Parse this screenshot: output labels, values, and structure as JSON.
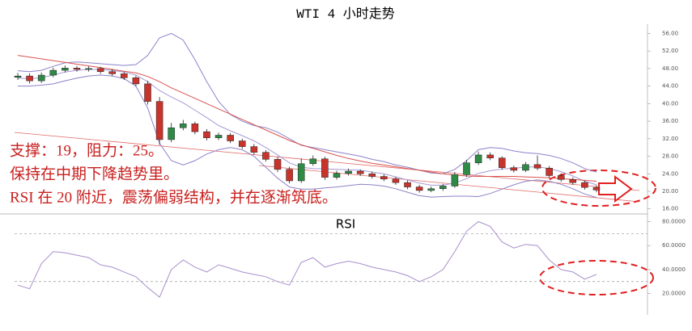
{
  "chart_data": [
    {
      "type": "candlestick",
      "title": "WTI 4 小时走势",
      "annotations": [
        "支撑：19，阻力：25。",
        "保持在中期下降趋势里。",
        "RSI 在 20 附近，震荡偏弱结构，并在逐渐筑底。"
      ],
      "categories": [
        null,
        null,
        null,
        null,
        null,
        null,
        null,
        null,
        null,
        null,
        null,
        null,
        null,
        null,
        null,
        null,
        null,
        null,
        null,
        null,
        null,
        null,
        null,
        null,
        null,
        null,
        null,
        null,
        null,
        null,
        null,
        null,
        null,
        null,
        null,
        null,
        null,
        null,
        null,
        null,
        null,
        null,
        null,
        null,
        null,
        null,
        null,
        null,
        null,
        null
      ],
      "open": [
        46.0,
        46.3,
        45.2,
        46.5,
        47.6,
        48.1,
        47.8,
        48.0,
        47.3,
        46.8,
        45.9,
        44.5,
        40.5,
        31.8,
        34.5,
        35.4,
        33.6,
        32.2,
        32.8,
        31.5,
        30.2,
        28.9,
        27.3,
        25.0,
        22.4,
        26.3,
        27.4,
        23.2,
        24.1,
        24.6,
        24.0,
        23.4,
        22.8,
        22.0,
        21.0,
        20.2,
        20.6,
        21.2,
        23.8,
        26.5,
        28.3,
        27.6,
        25.4,
        24.8,
        26.1,
        25.3,
        23.6,
        22.7,
        22.0,
        20.9
      ],
      "high": [
        47.0,
        46.9,
        47.1,
        48.2,
        48.7,
        48.6,
        48.5,
        48.4,
        47.9,
        47.2,
        46.4,
        45.2,
        41.5,
        35.6,
        36.3,
        35.9,
        34.2,
        33.4,
        33.3,
        32.0,
        30.8,
        29.4,
        27.9,
        25.6,
        27.5,
        28.2,
        27.9,
        24.7,
        25.2,
        25.0,
        24.5,
        23.9,
        23.3,
        22.5,
        21.5,
        21.1,
        21.7,
        24.4,
        27.2,
        29.1,
        28.9,
        28.0,
        25.9,
        26.7,
        28.2,
        25.8,
        24.1,
        23.2,
        22.4,
        21.4
      ],
      "low": [
        45.4,
        44.6,
        44.7,
        46.0,
        47.1,
        47.3,
        47.3,
        46.8,
        46.3,
        45.4,
        43.9,
        39.8,
        30.6,
        31.2,
        33.9,
        33.0,
        31.6,
        31.7,
        31.0,
        29.7,
        28.4,
        26.8,
        24.4,
        21.8,
        21.9,
        25.8,
        22.6,
        22.7,
        23.6,
        23.5,
        22.9,
        22.3,
        21.5,
        20.5,
        19.7,
        19.8,
        20.1,
        20.8,
        23.3,
        26.0,
        27.1,
        24.9,
        24.3,
        24.4,
        24.8,
        23.1,
        22.2,
        21.5,
        20.4,
        19.8
      ],
      "close": [
        46.3,
        45.2,
        46.5,
        47.6,
        48.1,
        47.8,
        48.0,
        47.3,
        46.8,
        45.9,
        44.5,
        40.5,
        31.8,
        34.5,
        35.4,
        33.6,
        32.2,
        32.8,
        31.5,
        30.2,
        28.9,
        27.3,
        25.0,
        22.4,
        26.3,
        27.4,
        23.2,
        24.1,
        24.6,
        24.0,
        23.4,
        22.8,
        22.0,
        21.0,
        20.2,
        20.6,
        21.2,
        23.8,
        26.5,
        28.3,
        27.6,
        25.4,
        24.8,
        26.1,
        25.3,
        23.6,
        22.7,
        22.0,
        20.9,
        20.3
      ],
      "up_color": "#2e8b46",
      "down_color": "#c8332c",
      "series": [
        {
          "color": "#8c82c8",
          "values": [
            47.5,
            47.3,
            47.6,
            48.5,
            49.3,
            49.5,
            49.3,
            49.1,
            48.9,
            48.7,
            48.9,
            51,
            55,
            56,
            54.5,
            50,
            45,
            40.5,
            37.5,
            36,
            35,
            34.5,
            33.5,
            32,
            30.5,
            30,
            29.5,
            29,
            28.5,
            28,
            27.3,
            26.8,
            26,
            25.5,
            24.8,
            24.2,
            24,
            25,
            27,
            29.5,
            30,
            29.8,
            29.2,
            28.8,
            28.6,
            28.2,
            27.5,
            26.5,
            25.2,
            24.4
          ]
        },
        {
          "color": "#a79ad6",
          "values": [
            45.8,
            45.7,
            45.9,
            46.5,
            47.2,
            47.6,
            47.8,
            47.8,
            47.6,
            47.2,
            46.5,
            45,
            43,
            41.5,
            40.2,
            38.5,
            36.8,
            35,
            33.8,
            32.7,
            31.5,
            30,
            28.3,
            26.5,
            25.5,
            25.2,
            25.1,
            25,
            24.9,
            24.8,
            24.4,
            24,
            23.3,
            22.6,
            21.9,
            21.4,
            21.4,
            21.9,
            22.9,
            24.1,
            24.7,
            25.1,
            25.3,
            25.5,
            25.6,
            25.2,
            24.5,
            23.5,
            22.3,
            21.5
          ]
        },
        {
          "color": "#8c82c8",
          "values": [
            44,
            44,
            44.2,
            44.5,
            45.2,
            45.8,
            46.3,
            46.5,
            46.3,
            45.7,
            44,
            39,
            31,
            27,
            26,
            27,
            28.5,
            29.5,
            30,
            29.5,
            28,
            25.5,
            23,
            21,
            20.5,
            20.5,
            20.8,
            21,
            21.3,
            21.6,
            21.5,
            21.2,
            20.6,
            19.8,
            19,
            18.7,
            18.8,
            18.9,
            18.9,
            18.8,
            19.5,
            20.5,
            21.5,
            22.3,
            22.6,
            22.3,
            21.6,
            20.6,
            19.4,
            18.6
          ]
        },
        {
          "color": "#d9534f",
          "values": [
            51,
            50.6,
            50.2,
            49.8,
            49.4,
            49,
            48.6,
            48.2,
            47.8,
            47.4,
            47,
            46.2,
            45,
            43.6,
            42.4,
            41.2,
            40,
            38.8,
            37.6,
            36.4,
            35.2,
            34,
            32.8,
            31.6,
            30.6,
            29.8,
            29,
            28.2,
            27.5,
            26.9,
            26.4,
            26,
            25.6,
            25.2,
            24.8,
            24.4,
            24,
            23.7,
            23.5,
            23.4,
            23.4,
            23.4,
            23.4,
            23.3,
            23.2,
            23.1,
            22.9,
            22.7,
            22.5,
            22.3
          ]
        }
      ],
      "ylim": [
        15.4,
        57
      ],
      "yticks": [
        {
          "value": 16,
          "label": "16.00"
        },
        {
          "value": 20,
          "label": "20.00"
        },
        {
          "value": 24,
          "label": "24.00"
        },
        {
          "value": 28,
          "label": "28.00"
        },
        {
          "value": 32,
          "label": "32.00"
        },
        {
          "value": 36,
          "label": "36.00"
        },
        {
          "value": 40,
          "label": "40.00"
        },
        {
          "value": 44,
          "label": "44.00"
        },
        {
          "value": 48,
          "label": "48.00"
        },
        {
          "value": 52,
          "label": "52.00"
        },
        {
          "value": 56,
          "label": "56.00"
        }
      ]
    },
    {
      "type": "line",
      "title": "RSI",
      "series": [
        {
          "color": "#a88fcb",
          "values": [
            27,
            24,
            45,
            55,
            54,
            52,
            50,
            44,
            42,
            38,
            34,
            25,
            17,
            40,
            48,
            42,
            38,
            44,
            41,
            38,
            36,
            34,
            30,
            27,
            46,
            50,
            42,
            45,
            47,
            45,
            42,
            40,
            38,
            35,
            30,
            34,
            40,
            55,
            72,
            80,
            76,
            63,
            58,
            61,
            60,
            48,
            40,
            38,
            32,
            36
          ]
        }
      ],
      "reference_lines": [
        70,
        30
      ],
      "ylim": [
        9,
        83
      ],
      "yticks": [
        {
          "value": 20,
          "label": "20.0000"
        },
        {
          "value": 40,
          "label": "40.0000"
        },
        {
          "value": 60,
          "label": "60.0000"
        },
        {
          "value": 80,
          "label": "80.0000"
        }
      ]
    }
  ]
}
